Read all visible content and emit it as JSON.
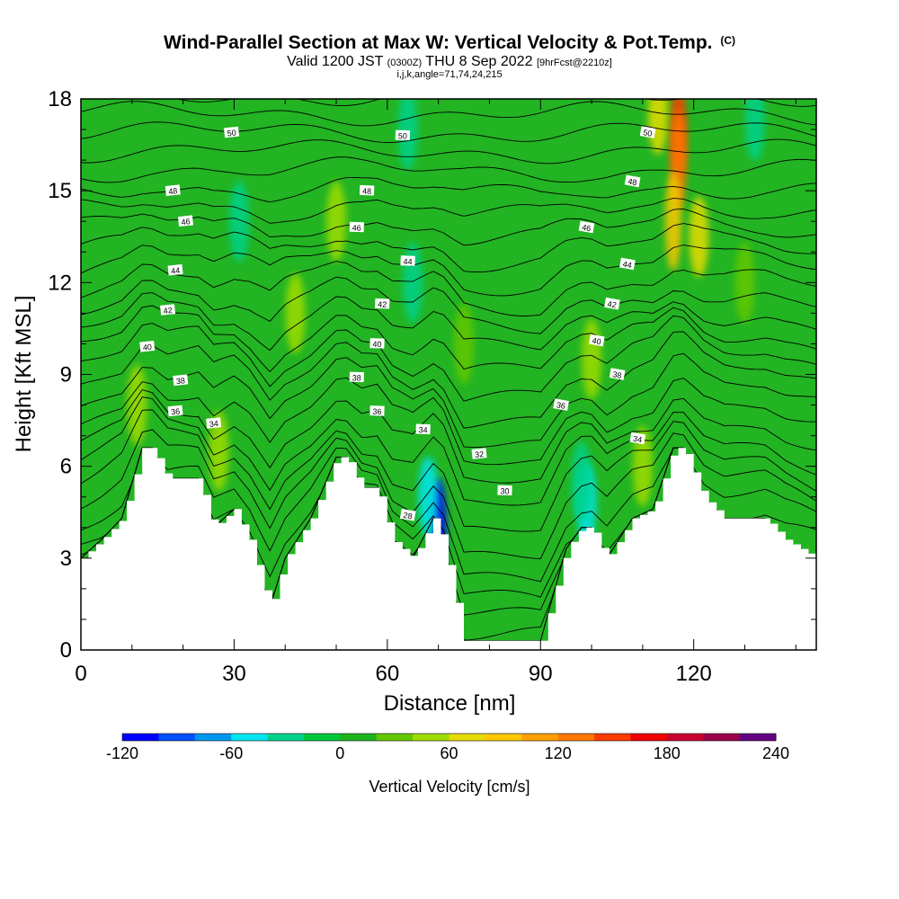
{
  "header": {
    "title": "Wind-Parallel Section at Max W: Vertical Velocity & Pot.Temp.",
    "copyright": "(C)",
    "valid_prefix": "Valid 1200 JST",
    "valid_utc": "(0300Z)",
    "valid_date": "THU 8 Sep 2022",
    "forecast_info": "[9hrFcst@2210z]",
    "section_params": "i,j,k,angle=71,74,24,215"
  },
  "colors": {
    "background": "#22b422",
    "terrain": "#ffffff",
    "contour": "#000000",
    "colorbar": [
      "#0000ff",
      "#0050ff",
      "#0096f0",
      "#00e6f0",
      "#00d28c",
      "#00c83c",
      "#1eb41e",
      "#64c800",
      "#a0dc00",
      "#e6dc00",
      "#ffc800",
      "#ffa000",
      "#ff7800",
      "#ff3c00",
      "#f00000",
      "#c80032",
      "#9b004b",
      "#640082"
    ]
  },
  "chart_data": {
    "type": "heatmap",
    "xlabel": "Distance [nm]",
    "ylabel": "Height [Kft MSL]",
    "xlim": [
      0,
      144
    ],
    "ylim": [
      0,
      18
    ],
    "xticks": [
      "0",
      "30",
      "60",
      "90",
      "120"
    ],
    "xtick_values": [
      0,
      30,
      60,
      90,
      120
    ],
    "yticks": [
      "0",
      "3",
      "6",
      "9",
      "12",
      "15",
      "18"
    ],
    "ytick_values": [
      0,
      3,
      6,
      9,
      12,
      15,
      18
    ],
    "colorbar": {
      "label": "Vertical Velocity [cm/s]",
      "range": [
        -120,
        240
      ],
      "step": 20,
      "tick_labels": [
        "-120",
        "-60",
        "0",
        "60",
        "120",
        "180",
        "240"
      ],
      "tick_values": [
        -120,
        -60,
        0,
        60,
        120,
        180,
        240
      ]
    },
    "terrain": [
      {
        "x": 0,
        "h": 3.0
      },
      {
        "x": 4,
        "h": 3.6
      },
      {
        "x": 8,
        "h": 4.3
      },
      {
        "x": 12,
        "h": 6.6
      },
      {
        "x": 14,
        "h": 6.6
      },
      {
        "x": 17,
        "h": 5.6
      },
      {
        "x": 23,
        "h": 5.6
      },
      {
        "x": 26,
        "h": 4.0
      },
      {
        "x": 30,
        "h": 4.6
      },
      {
        "x": 33,
        "h": 3.6
      },
      {
        "x": 37,
        "h": 1.4
      },
      {
        "x": 40,
        "h": 3.0
      },
      {
        "x": 45,
        "h": 4.3
      },
      {
        "x": 50,
        "h": 6.3
      },
      {
        "x": 52,
        "h": 6.3
      },
      {
        "x": 55,
        "h": 5.3
      },
      {
        "x": 58,
        "h": 5.3
      },
      {
        "x": 61,
        "h": 3.6
      },
      {
        "x": 65,
        "h": 3.0
      },
      {
        "x": 69,
        "h": 4.3
      },
      {
        "x": 71,
        "h": 3.6
      },
      {
        "x": 75,
        "h": 0.3
      },
      {
        "x": 90,
        "h": 0.3
      },
      {
        "x": 95,
        "h": 3.3
      },
      {
        "x": 98,
        "h": 4.0
      },
      {
        "x": 100,
        "h": 4.0
      },
      {
        "x": 103,
        "h": 3.0
      },
      {
        "x": 108,
        "h": 4.3
      },
      {
        "x": 112,
        "h": 4.6
      },
      {
        "x": 116,
        "h": 6.6
      },
      {
        "x": 118,
        "h": 6.6
      },
      {
        "x": 122,
        "h": 5.0
      },
      {
        "x": 126,
        "h": 4.3
      },
      {
        "x": 134,
        "h": 4.3
      },
      {
        "x": 138,
        "h": 3.6
      },
      {
        "x": 144,
        "h": 3.0
      }
    ],
    "vertical_velocity_features": [
      {
        "x": 70,
        "h": 4.0,
        "value": -120
      },
      {
        "x": 68,
        "h": 5.0,
        "value": -60
      },
      {
        "x": 99,
        "h": 4.8,
        "value": -60
      },
      {
        "x": 98,
        "h": 5.5,
        "value": -40
      },
      {
        "x": 64,
        "h": 17.0,
        "value": -40
      },
      {
        "x": 65,
        "h": 12.0,
        "value": -40
      },
      {
        "x": 31,
        "h": 14.0,
        "value": -40
      },
      {
        "x": 132,
        "h": 17.3,
        "value": -40
      },
      {
        "x": 117,
        "h": 17.0,
        "value": 150
      },
      {
        "x": 117,
        "h": 16.0,
        "value": 120
      },
      {
        "x": 116,
        "h": 14.0,
        "value": 80
      },
      {
        "x": 113,
        "h": 17.5,
        "value": 70
      },
      {
        "x": 121,
        "h": 13.5,
        "value": 60
      },
      {
        "x": 110,
        "h": 6.0,
        "value": 50
      },
      {
        "x": 100,
        "h": 9.5,
        "value": 40
      },
      {
        "x": 27,
        "h": 6.5,
        "value": 40
      },
      {
        "x": 42,
        "h": 11.0,
        "value": 40
      },
      {
        "x": 50,
        "h": 14.0,
        "value": 40
      },
      {
        "x": 11,
        "h": 8.0,
        "value": 40
      },
      {
        "x": 75,
        "h": 10.0,
        "value": 20
      },
      {
        "x": 130,
        "h": 12.0,
        "value": 20
      }
    ],
    "theta_contour_labels": [
      {
        "value": "50",
        "x": 29.5,
        "h": 16.9
      },
      {
        "value": "50",
        "x": 63,
        "h": 16.8
      },
      {
        "value": "50",
        "x": 111,
        "h": 16.9
      },
      {
        "value": "48",
        "x": 18,
        "h": 15.0
      },
      {
        "value": "48",
        "x": 56,
        "h": 15.0
      },
      {
        "value": "48",
        "x": 108,
        "h": 15.3
      },
      {
        "value": "46",
        "x": 20.5,
        "h": 14.0
      },
      {
        "value": "46",
        "x": 54,
        "h": 13.8
      },
      {
        "value": "46",
        "x": 99,
        "h": 13.8
      },
      {
        "value": "44",
        "x": 18.5,
        "h": 12.4
      },
      {
        "value": "44",
        "x": 64,
        "h": 12.7
      },
      {
        "value": "44",
        "x": 107,
        "h": 12.6
      },
      {
        "value": "42",
        "x": 17,
        "h": 11.1
      },
      {
        "value": "42",
        "x": 59,
        "h": 11.3
      },
      {
        "value": "42",
        "x": 104,
        "h": 11.3
      },
      {
        "value": "40",
        "x": 13,
        "h": 9.9
      },
      {
        "value": "40",
        "x": 58,
        "h": 10.0
      },
      {
        "value": "40",
        "x": 101,
        "h": 10.1
      },
      {
        "value": "38",
        "x": 19.5,
        "h": 8.8
      },
      {
        "value": "38",
        "x": 54,
        "h": 8.9
      },
      {
        "value": "38",
        "x": 105,
        "h": 9.0
      },
      {
        "value": "36",
        "x": 18.5,
        "h": 7.8
      },
      {
        "value": "36",
        "x": 58,
        "h": 7.8
      },
      {
        "value": "36",
        "x": 94,
        "h": 8.0
      },
      {
        "value": "34",
        "x": 26,
        "h": 7.4
      },
      {
        "value": "34",
        "x": 67,
        "h": 7.2
      },
      {
        "value": "34",
        "x": 109,
        "h": 6.9
      },
      {
        "value": "32",
        "x": 78,
        "h": 6.4
      },
      {
        "value": "30",
        "x": 83,
        "h": 5.2
      },
      {
        "value": "28",
        "x": 64,
        "h": 4.4
      }
    ]
  }
}
